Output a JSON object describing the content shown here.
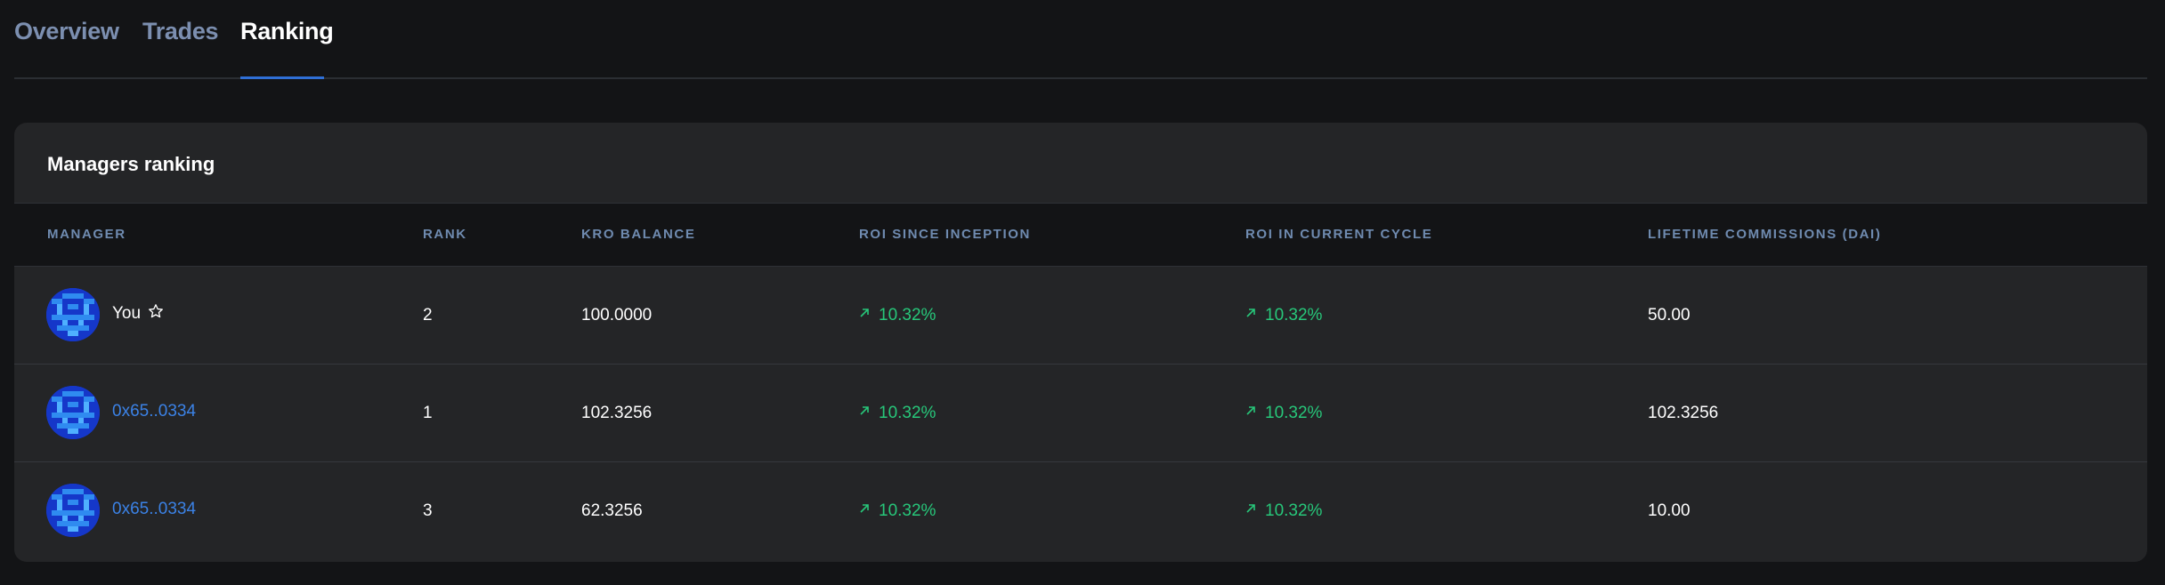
{
  "tabs": [
    {
      "label": "Overview",
      "active": false
    },
    {
      "label": "Trades",
      "active": false
    },
    {
      "label": "Ranking",
      "active": true
    }
  ],
  "card": {
    "title": "Managers ranking",
    "columns": {
      "manager": "MANAGER",
      "rank": "RANK",
      "kro_balance": "KRO BALANCE",
      "roi_inception": "ROI SINCE INCEPTION",
      "roi_cycle": "ROI IN CURRENT CYCLE",
      "commissions": "LIFETIME COMMISSIONS (DAI)"
    },
    "rows": [
      {
        "manager": "You",
        "is_self": true,
        "rank": "2",
        "kro_balance": "100.0000",
        "roi_inception": "10.32%",
        "roi_cycle": "10.32%",
        "commissions": "50.00"
      },
      {
        "manager": "0x65..0334",
        "is_self": false,
        "rank": "1",
        "kro_balance": "102.3256",
        "roi_inception": "10.32%",
        "roi_cycle": "10.32%",
        "commissions": "102.3256"
      },
      {
        "manager": "0x65..0334",
        "is_self": false,
        "rank": "3",
        "kro_balance": "62.3256",
        "roi_inception": "10.32%",
        "roi_cycle": "10.32%",
        "commissions": "10.00"
      }
    ]
  },
  "icons": {
    "avatar": "identicon-avatar-icon",
    "star": "star-outline-icon",
    "trend": "arrow-up-right-icon"
  },
  "colors": {
    "background": "#131416",
    "card": "#242527",
    "accent": "#2f6fd6",
    "positive": "#27c77a",
    "link": "#3b82e6",
    "header_text": "#6f8bb0"
  }
}
